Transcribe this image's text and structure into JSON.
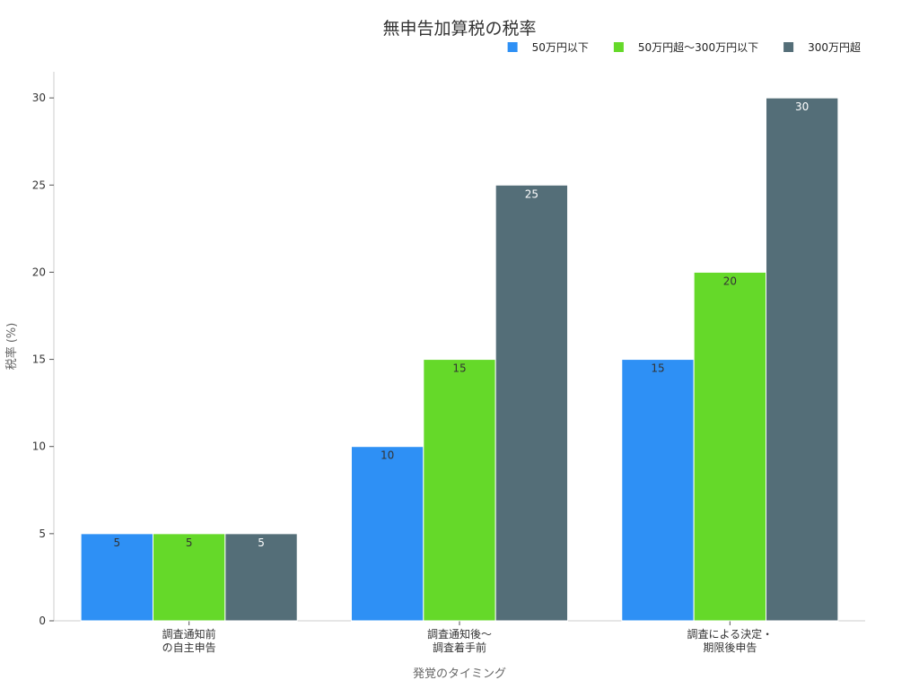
{
  "chart_data": {
    "type": "bar",
    "title": "無申告加算税の税率",
    "xlabel": "発覚のタイミング",
    "ylabel": "税率 (%)",
    "categories": [
      [
        "調査通知前",
        "の自主申告"
      ],
      [
        "調査通知後〜",
        "調査着手前"
      ],
      [
        "調査による決定・",
        "期限後申告"
      ]
    ],
    "series": [
      {
        "name": "50万円以下",
        "values": [
          5,
          10,
          15
        ],
        "color": "#2e90f5"
      },
      {
        "name": "50万円超〜300万円以下",
        "values": [
          5,
          15,
          20
        ],
        "color": "#65d929"
      },
      {
        "name": "300万円超",
        "values": [
          5,
          25,
          30
        ],
        "color": "#546e78"
      }
    ],
    "ylim": [
      0,
      31.5
    ],
    "yticks": [
      0,
      5,
      10,
      15,
      20,
      25,
      30
    ],
    "grid": false,
    "legend": "top-right"
  }
}
